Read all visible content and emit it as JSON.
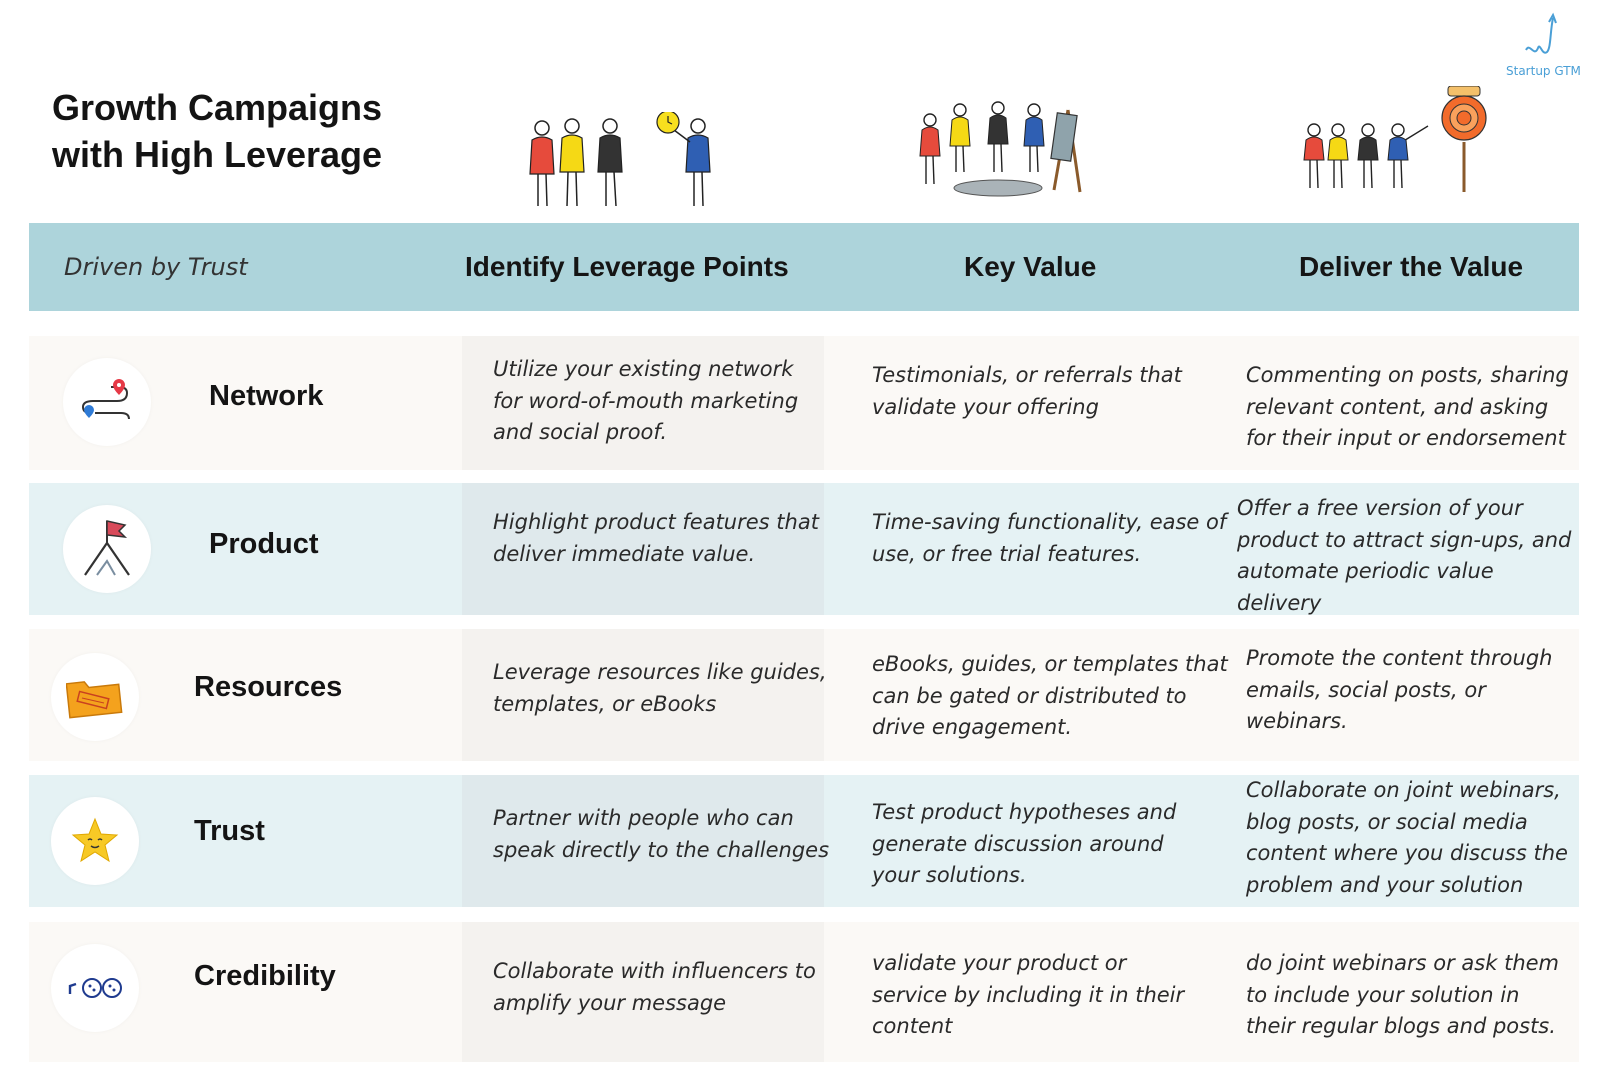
{
  "title": {
    "line1": "Growth Campaigns",
    "line2": "with High Leverage"
  },
  "brand": {
    "name": "Startup GTM",
    "accent": "#4a9fd6"
  },
  "colors": {
    "header_band": "#add4db",
    "row_warm": "#fbf9f6",
    "row_cool": "#e5f2f4"
  },
  "header": {
    "col0": "Driven by Trust",
    "col1": "Identify Leverage Points",
    "col2": "Key Value",
    "col3": "Deliver the Value"
  },
  "rows": [
    {
      "label": "Network",
      "icon": "route-map-pins-icon",
      "leverage": "Utilize your existing network\nfor word-of-mouth marketing\nand social proof.",
      "value": "Testimonials, or referrals that\nvalidate your offering",
      "deliver": "Commenting on posts, sharing\nrelevant content, and asking\nfor their input or endorsement"
    },
    {
      "label": "Product",
      "icon": "mountain-flag-icon",
      "leverage": "Highlight product features that\ndeliver immediate value.",
      "value": "Time-saving functionality, ease of\nuse, or free trial features.",
      "deliver": "Offer a free version of your\nproduct to attract sign-ups, and\nautomate periodic value delivery"
    },
    {
      "label": "Resources",
      "icon": "confidential-folder-icon",
      "leverage": "Leverage resources like guides,\ntemplates, or eBooks",
      "value": "eBooks, guides, or templates that\ncan be gated or distributed to\ndrive engagement.",
      "deliver": "Promote the content through\nemails, social posts, or\nwebinars."
    },
    {
      "label": "Trust",
      "icon": "smiling-star-icon",
      "leverage": "Partner with people who can\nspeak directly to the challenges",
      "value": "Test product hypotheses and\ngenerate discussion around\nyour solutions.",
      "deliver": "Collaborate on joint webinars,\nblog posts, or social media\ncontent where you discuss the\nproblem and your solution"
    },
    {
      "label": "Credibility",
      "icon": "megaphone-audience-icon",
      "leverage": "Collaborate with influencers to\namplify your message",
      "value": "validate your product or\nservice by including it in their\ncontent",
      "deliver": "do joint webinars or ask them\nto include your solution in\ntheir regular blogs and posts."
    }
  ]
}
